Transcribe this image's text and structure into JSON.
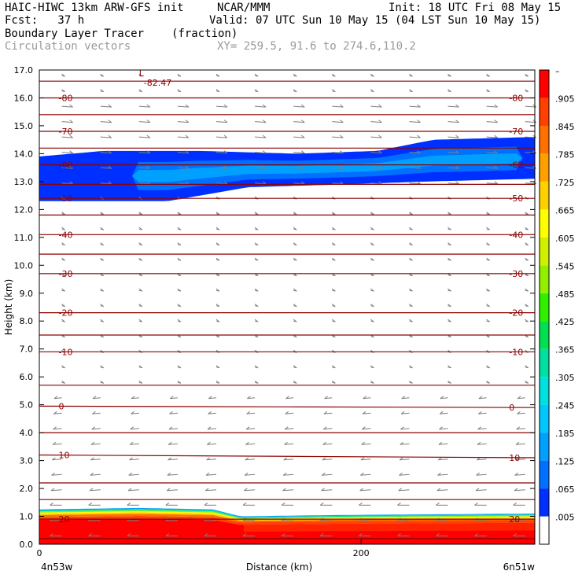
{
  "header": {
    "model_title": "HAIC-HIWC 13km ARW-GFS init",
    "org": "NCAR/MMM",
    "init": "Init: 18 UTC Fri 08 May 15",
    "fcst": "Fcst:   37 h",
    "valid": "Valid: 07 UTC Sun 10 May 15 (04 LST Sun 10 May 15)",
    "field": "Boundary Layer Tracer",
    "units": "(fraction)",
    "vectors": "Circulation vectors",
    "xy": "XY= 259.5, 91.6 to 274.6,110.2"
  },
  "colors": {
    "contour": "#8b0000",
    "vector": "#7f7f7f",
    "frame": "#000000"
  },
  "chart_data": {
    "type": "heatmap",
    "xlabel": "Distance (km)",
    "ylabel": "Height (km)",
    "xlim": [
      0,
      308
    ],
    "ylim": [
      0.0,
      17.0
    ],
    "x_ticks": [
      {
        "value": 0,
        "label": "0"
      },
      {
        "value": 200,
        "label": "200"
      }
    ],
    "y_ticks": [
      "0.0",
      "1.0",
      "2.0",
      "3.0",
      "4.0",
      "5.0",
      "6.0",
      "7.0",
      "8.0",
      "9.0",
      "10.0",
      "11.0",
      "12.0",
      "13.0",
      "14.0",
      "15.0",
      "16.0",
      "17.0"
    ],
    "x_endpoints": {
      "left": "4n53w",
      "right": "6n51w"
    },
    "colorbar": {
      "levels": [
        ".005",
        ".065",
        ".125",
        ".185",
        ".245",
        ".305",
        ".365",
        ".425",
        ".485",
        ".545",
        ".605",
        ".665",
        ".725",
        ".785",
        ".845",
        ".905"
      ],
      "top_label": "–",
      "colors": [
        "#ffffff",
        "#0030ff",
        "#0070ff",
        "#00a0ff",
        "#00c8ff",
        "#00e0e0",
        "#00e0a0",
        "#00e050",
        "#30f000",
        "#90f000",
        "#d0f000",
        "#ffff00",
        "#ffd000",
        "#ffa000",
        "#ff7000",
        "#ff4000",
        "#ff0000"
      ]
    },
    "temperature_contours": {
      "unit": "C",
      "lines": [
        {
          "value": 20,
          "y_left": 0.9,
          "y_right": 0.9,
          "label": "20"
        },
        {
          "value": 10,
          "y_left": 3.2,
          "y_right": 3.1,
          "label": "10"
        },
        {
          "value": 0,
          "y_left": 4.95,
          "y_right": 4.9,
          "label": "0"
        },
        {
          "value": -10,
          "y_left": 6.9,
          "y_right": 6.9,
          "label": "-10"
        },
        {
          "value": -20,
          "y_left": 8.3,
          "y_right": 8.3,
          "label": "-20"
        },
        {
          "value": -30,
          "y_left": 9.7,
          "y_right": 9.7,
          "label": "-30"
        },
        {
          "value": -40,
          "y_left": 11.1,
          "y_right": 11.1,
          "label": "-40"
        },
        {
          "value": -50,
          "y_left": 12.4,
          "y_right": 12.4,
          "label": "-50"
        },
        {
          "value": -60,
          "y_left": 13.6,
          "y_right": 13.6,
          "label": "-60"
        },
        {
          "value": -70,
          "y_left": 14.8,
          "y_right": 14.8,
          "label": "-70"
        },
        {
          "value": -80,
          "y_left": 16.0,
          "y_right": 16.0,
          "label": "-80"
        }
      ],
      "intermediate_levels": [
        0.2,
        1.6,
        2.2,
        4.0,
        5.7,
        7.5,
        10.4,
        11.8,
        12.9,
        14.2,
        15.4,
        16.6
      ],
      "min_marker": {
        "symbol": "L",
        "value": "-82.47",
        "x": 62,
        "y": 16.55
      }
    },
    "tracer_layers": [
      {
        "name": "surface",
        "bottom": 0.0,
        "top_profile": [
          [
            0,
            1.25
          ],
          [
            62,
            1.3
          ],
          [
            108,
            1.25
          ],
          [
            125,
            1.0
          ],
          [
            190,
            1.05
          ],
          [
            308,
            1.1
          ]
        ]
      },
      {
        "name": "upper",
        "bottom_profile": [
          [
            0,
            12.3
          ],
          [
            80,
            12.3
          ],
          [
            130,
            12.8
          ],
          [
            190,
            12.9
          ],
          [
            240,
            13.0
          ],
          [
            308,
            13.1
          ]
        ],
        "top_profile": [
          [
            0,
            13.9
          ],
          [
            40,
            14.1
          ],
          [
            100,
            14.1
          ],
          [
            160,
            14.0
          ],
          [
            210,
            14.1
          ],
          [
            245,
            14.5
          ],
          [
            308,
            14.6
          ]
        ]
      }
    ]
  }
}
